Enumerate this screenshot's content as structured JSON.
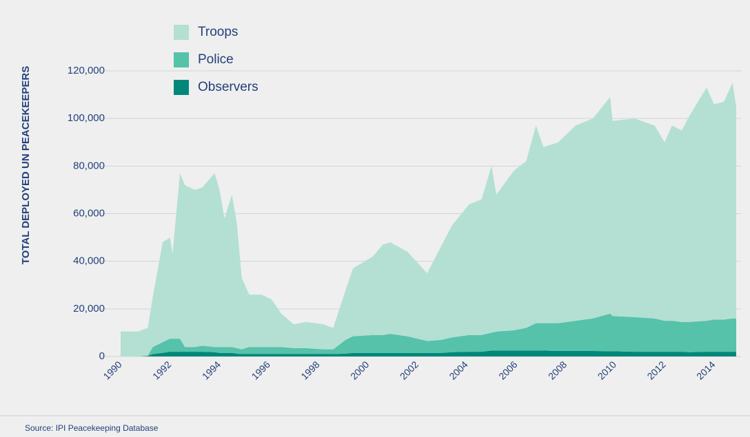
{
  "chart_data": {
    "type": "stacked_area",
    "y_label": "TOTAL DEPLOYED UN PEACEKEEPERS",
    "source": "Source: IPI Peacekeeping Database",
    "x": [
      1990.0,
      1990.7,
      1991.1,
      1991.3,
      1991.7,
      1992.0,
      1992.1,
      1992.4,
      1992.6,
      1993.0,
      1993.3,
      1993.8,
      1994.0,
      1994.2,
      1994.5,
      1994.7,
      1994.9,
      1995.2,
      1995.7,
      1996.1,
      1996.5,
      1997.0,
      1997.5,
      1998.2,
      1998.6,
      1999.1,
      1999.4,
      2000.2,
      2000.6,
      2000.9,
      2001.6,
      2002.4,
      2003.0,
      2003.4,
      2004.1,
      2004.6,
      2005.0,
      2005.2,
      2005.9,
      2006.4,
      2006.8,
      2007.1,
      2007.7,
      2008.4,
      2009.1,
      2009.8,
      2009.9,
      2010.8,
      2011.6,
      2012.0,
      2012.3,
      2012.7,
      2013.0,
      2013.7,
      2014.0,
      2014.4,
      2014.75,
      2014.9
    ],
    "series": [
      {
        "name": "Troops",
        "color": "#b3e0d3",
        "values": [
          10500,
          10500,
          11700,
          21000,
          42000,
          42500,
          35500,
          69500,
          68000,
          66000,
          66500,
          73000,
          66000,
          54000,
          64000,
          52500,
          30000,
          22000,
          22000,
          20000,
          14000,
          10000,
          11000,
          10500,
          9000,
          21000,
          28500,
          33000,
          38000,
          38500,
          35500,
          28500,
          40000,
          47000,
          55000,
          57000,
          70000,
          57500,
          67000,
          70000,
          83000,
          74000,
          76000,
          82000,
          84000,
          91000,
          82000,
          83500,
          81000,
          75000,
          82000,
          80500,
          86500,
          98000,
          90500,
          91500,
          99000,
          89000
        ]
      },
      {
        "name": "Police",
        "color": "#56c2a9",
        "values": [
          0,
          0,
          100,
          3000,
          4500,
          5500,
          5500,
          5500,
          2000,
          2000,
          2500,
          2200,
          2500,
          2500,
          2500,
          2300,
          2000,
          3000,
          3000,
          3000,
          3000,
          2500,
          2500,
          2000,
          2000,
          5800,
          7000,
          7500,
          7500,
          8000,
          7000,
          5000,
          5500,
          6200,
          7000,
          7000,
          7500,
          8000,
          8500,
          9500,
          11500,
          11500,
          11700,
          12700,
          13700,
          15800,
          14800,
          14500,
          14000,
          13000,
          13000,
          12500,
          12700,
          13000,
          13500,
          13500,
          14000,
          14000
        ]
      },
      {
        "name": "Observers",
        "color": "#00877a",
        "values": [
          0,
          0,
          200,
          1000,
          1500,
          2000,
          2000,
          2000,
          2000,
          2000,
          2000,
          1800,
          1500,
          1500,
          1500,
          1200,
          1000,
          1000,
          1000,
          1000,
          1000,
          1000,
          1000,
          1000,
          1000,
          1200,
          1500,
          1500,
          1500,
          1500,
          1500,
          1500,
          1500,
          1800,
          2000,
          2000,
          2500,
          2500,
          2500,
          2500,
          2500,
          2500,
          2300,
          2300,
          2300,
          2200,
          2200,
          2000,
          2000,
          2000,
          2000,
          2000,
          1800,
          2000,
          2000,
          2000,
          2000,
          2000
        ]
      }
    ],
    "xlim": [
      1990,
      2014.9
    ],
    "xticks": [
      1990,
      1992,
      1994,
      1996,
      1998,
      2000,
      2002,
      2004,
      2006,
      2008,
      2010,
      2012,
      2014
    ],
    "ylim": [
      0,
      120000
    ],
    "yticks": [
      0,
      {
        "value": 20000,
        "label": "20,000"
      },
      {
        "value": 40000,
        "label": "40,000"
      },
      {
        "value": 60000,
        "label": "60,000"
      },
      {
        "value": 80000,
        "label": "80,000"
      },
      {
        "value": 100000,
        "label": "100,000"
      },
      {
        "value": 120000,
        "label": "120,000"
      }
    ],
    "grid": true
  }
}
